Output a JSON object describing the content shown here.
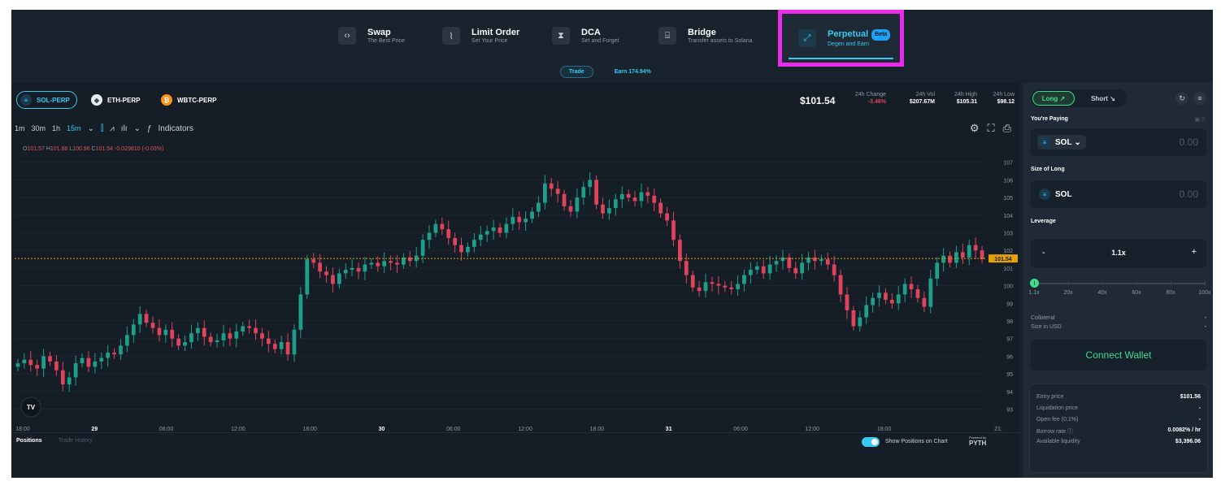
{
  "nav": {
    "items": [
      {
        "title": "Swap",
        "sub": "The Best Price",
        "icon": "swap-arrows-icon"
      },
      {
        "title": "Limit Order",
        "sub": "Set Your Price",
        "icon": "limit-order-icon"
      },
      {
        "title": "DCA",
        "sub": "Set and Forget",
        "icon": "hourglass-icon"
      },
      {
        "title": "Bridge",
        "sub": "Transfer assets to Solana",
        "icon": "bridge-icon"
      },
      {
        "title": "Perpetual",
        "sub": "Degen and Earn",
        "badge": "Beta",
        "icon": "expand-arrows-icon"
      }
    ],
    "highlight_color": "#ea2bea"
  },
  "subtabs": {
    "trade": "Trade",
    "earn": "Earn 174.94%"
  },
  "markets": [
    {
      "label": "SOL-PERP",
      "icon": "sol-coin-icon"
    },
    {
      "label": "ETH-PERP",
      "icon": "eth-coin-icon"
    },
    {
      "label": "WBTC-PERP",
      "icon": "wbtc-coin-icon"
    }
  ],
  "price": "$101.54",
  "stats": [
    {
      "label": "24h Change",
      "value": "-3.46%"
    },
    {
      "label": "24h Vol",
      "value": "$207.67M"
    },
    {
      "label": "24h High",
      "value": "$105.31"
    },
    {
      "label": "24h Low",
      "value": "$98.12"
    }
  ],
  "toolbar": {
    "timeframes": [
      "1m",
      "30m",
      "1h",
      "15m"
    ],
    "indicators": "Indicators"
  },
  "ohlc": {
    "o": "101.57",
    "h": "101.88",
    "l": "100.96",
    "c": "101.54",
    "change": "-0.029810 (-0.03%)"
  },
  "chart_data": {
    "type": "candlestick",
    "x_ticks": [
      "18:00",
      "29",
      "06:00",
      "12:00",
      "18:00",
      "30",
      "06:00",
      "12:00",
      "18:00",
      "31",
      "06:00",
      "12:00",
      "18:00",
      "21:"
    ],
    "y_ticks": [
      93,
      94,
      95,
      96,
      97,
      98,
      99,
      100,
      101,
      102,
      103,
      104,
      105,
      106,
      107
    ],
    "ylim": [
      92.7,
      108
    ],
    "last_price": "101.54",
    "colors": {
      "up": "#1f9e8a",
      "down": "#e0435c"
    },
    "close": [
      95.6,
      95.8,
      95.5,
      95.3,
      96.0,
      95.7,
      95.2,
      94.4,
      94.8,
      95.6,
      95.9,
      95.4,
      95.7,
      95.9,
      96.2,
      96.1,
      96.6,
      97.2,
      97.8,
      98.4,
      97.9,
      97.6,
      97.2,
      97.5,
      97.0,
      96.6,
      96.8,
      97.3,
      97.6,
      97.1,
      96.8,
      96.9,
      97.3,
      97.0,
      97.4,
      97.7,
      97.6,
      97.3,
      97.0,
      96.7,
      96.4,
      96.8,
      96.1,
      97.5,
      99.5,
      101.5,
      101.3,
      100.8,
      100.6,
      100.1,
      100.7,
      100.9,
      101.0,
      100.8,
      101.2,
      101.3,
      101.1,
      101.4,
      101.3,
      101.2,
      101.6,
      101.4,
      101.7,
      102.6,
      103.0,
      103.5,
      103.2,
      102.7,
      102.3,
      101.9,
      102.2,
      102.6,
      102.9,
      103.1,
      103.3,
      103.0,
      103.5,
      103.9,
      103.6,
      103.8,
      104.2,
      104.7,
      105.8,
      105.5,
      105.2,
      104.5,
      104.2,
      105.0,
      105.6,
      106.0,
      104.6,
      104.1,
      104.4,
      104.9,
      105.2,
      105.0,
      104.8,
      105.3,
      105.1,
      104.7,
      104.1,
      103.7,
      102.6,
      101.4,
      100.6,
      99.9,
      99.7,
      100.2,
      100.1,
      100.0,
      99.9,
      99.8,
      100.1,
      100.6,
      100.9,
      101.1,
      100.7,
      101.2,
      101.4,
      101.6,
      101.0,
      100.7,
      101.3,
      101.6,
      101.4,
      101.5,
      101.2,
      100.6,
      99.5,
      98.6,
      97.7,
      98.2,
      98.9,
      99.3,
      99.6,
      99.2,
      99.0,
      99.5,
      100.1,
      99.8,
      99.3,
      98.8,
      100.4,
      101.3,
      101.7,
      101.3,
      101.9,
      101.6,
      102.3,
      102.0,
      101.5
    ]
  },
  "bottom": {
    "positions": "Positions",
    "trade_history": "Trade History",
    "show_positions": "Show Positions on Chart",
    "powered_by": "Powered by",
    "pyth": "PYTH"
  },
  "panel": {
    "long": "Long",
    "short": "Short",
    "paying_label": "You're Paying",
    "paying_balance": "0",
    "paying_token": "SOL",
    "paying_amount": "0.00",
    "size_label": "Size of Long",
    "size_token": "SOL",
    "size_amount": "0.00",
    "leverage_label": "Leverage",
    "minus": "-",
    "leverage_value": "1.1x",
    "plus": "+",
    "leverage_fraction": 0,
    "slider_labels": [
      "1.1x",
      "20x",
      "40x",
      "60x",
      "80x",
      "100x"
    ],
    "collateral_label": "Collateral",
    "collateral_value": "-",
    "size_usd_label": "Size in USD",
    "size_usd_value": "-",
    "connect": "Connect Wallet",
    "info": [
      {
        "label": "Entry price",
        "value": "$101.56"
      },
      {
        "label": "Liquidation price",
        "value": "-"
      },
      {
        "label": "Open fee (0.1%)",
        "value": "-"
      },
      {
        "label": "Borrow rate ⓘ",
        "value": "0.0082% / hr"
      },
      {
        "label": "Available liquidity",
        "value": "$3,396.06"
      }
    ]
  }
}
